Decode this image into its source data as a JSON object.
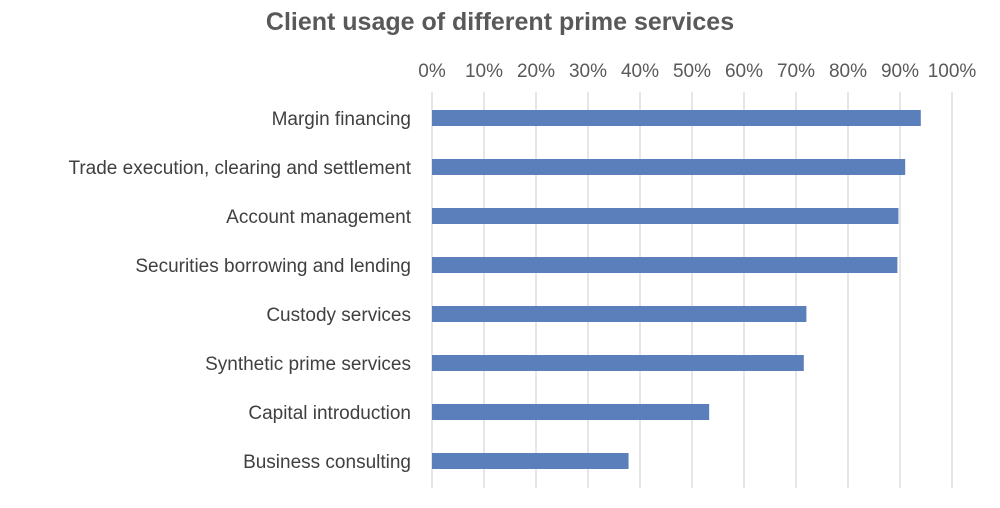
{
  "chart_data": {
    "type": "bar",
    "orientation": "horizontal",
    "title": "Client usage of different prime services",
    "categories": [
      "Margin financing",
      "Trade execution, clearing and settlement",
      "Account management",
      "Securities borrowing and lending",
      "Custody services",
      "Synthetic prime services",
      "Capital introduction",
      "Business consulting"
    ],
    "values": [
      94,
      91,
      89.7,
      89.5,
      72,
      71.5,
      53.3,
      37.8
    ],
    "xlim": [
      0,
      100
    ],
    "xticks": [
      "0%",
      "10%",
      "20%",
      "30%",
      "40%",
      "50%",
      "60%",
      "70%",
      "80%",
      "90%",
      "100%"
    ],
    "x_axis_position": "top",
    "grid": true,
    "bar_color": "#5B7FBA",
    "grid_color": "#D9D9D9",
    "xlabel": "",
    "ylabel": ""
  }
}
